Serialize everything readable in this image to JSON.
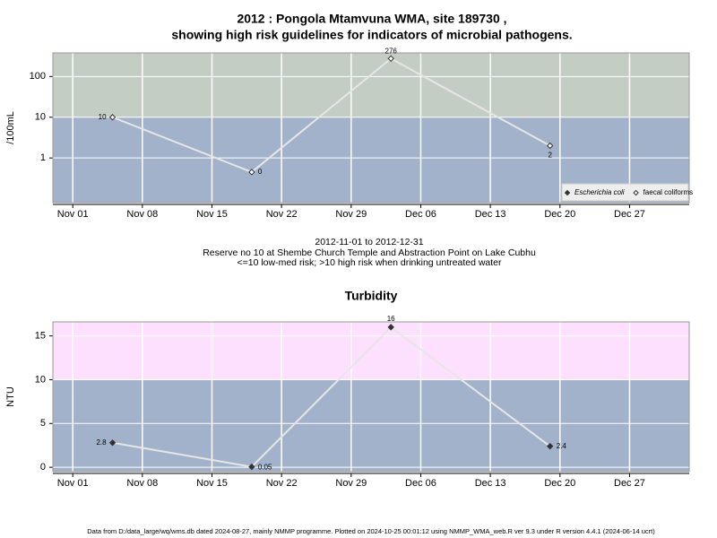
{
  "chart_data": [
    {
      "type": "line",
      "title": [
        "2012 : Pongola Mtamvuna WMA, site 189730 ,",
        "showing high risk guidelines for indicators of microbial pathogens."
      ],
      "ylabel": "/100mL",
      "caption": [
        "2012-11-01 to 2012-12-31",
        "Reserve no 10 at Shembe Church Temple and Abstraction Point on Lake Cubhu",
        "<=10 low-med risk; >10 high risk when drinking untreated water"
      ],
      "x": [
        "2012-11-05",
        "2012-11-19",
        "2012-12-03",
        "2012-12-19"
      ],
      "series": [
        {
          "name": "Escherichia coli",
          "marker": "filled",
          "values": [
            null,
            null,
            null,
            null
          ]
        },
        {
          "name": "faecal coliforms",
          "marker": "open",
          "values": [
            10,
            0.45,
            276,
            2
          ],
          "value_labels": [
            "10",
            "0",
            "276",
            "2"
          ]
        }
      ],
      "log_y": true,
      "ylim": [
        0.08,
        380
      ],
      "yticks": [
        1,
        10,
        100
      ],
      "xlim": [
        "2012-10-30",
        "2013-01-02"
      ],
      "xticks": [
        {
          "value": "2012-11-01",
          "label": "Nov 01"
        },
        {
          "value": "2012-11-08",
          "label": "Nov 08"
        },
        {
          "value": "2012-11-15",
          "label": "Nov 15"
        },
        {
          "value": "2012-11-22",
          "label": "Nov 22"
        },
        {
          "value": "2012-11-29",
          "label": "Nov 29"
        },
        {
          "value": "2012-12-06",
          "label": "Dec 06"
        },
        {
          "value": "2012-12-13",
          "label": "Dec 13"
        },
        {
          "value": "2012-12-20",
          "label": "Dec 20"
        },
        {
          "value": "2012-12-27",
          "label": "Dec 27"
        }
      ],
      "threshold": 10,
      "band_colors": [
        "#a2b2cb",
        "#c3cdc3"
      ],
      "grid": true,
      "legend": "bottomright"
    },
    {
      "type": "line",
      "title": "Turbidity",
      "ylabel": "NTU",
      "x": [
        "2012-11-05",
        "2012-11-19",
        "2012-12-03",
        "2012-12-19"
      ],
      "series": [
        {
          "marker": "filled",
          "values": [
            2.8,
            0.05,
            16,
            2.4
          ]
        }
      ],
      "log_y": false,
      "ylim": [
        -0.5,
        16.6
      ],
      "yticks": [
        0,
        5,
        10,
        15
      ],
      "xlim": [
        "2012-10-30",
        "2013-01-02"
      ],
      "xticks": [
        {
          "value": "2012-11-01",
          "label": "Nov 01"
        },
        {
          "value": "2012-11-08",
          "label": "Nov 08"
        },
        {
          "value": "2012-11-15",
          "label": "Nov 15"
        },
        {
          "value": "2012-11-22",
          "label": "Nov 22"
        },
        {
          "value": "2012-11-29",
          "label": "Nov 29"
        },
        {
          "value": "2012-12-06",
          "label": "Dec 06"
        },
        {
          "value": "2012-12-13",
          "label": "Dec 13"
        },
        {
          "value": "2012-12-20",
          "label": "Dec 20"
        },
        {
          "value": "2012-12-27",
          "label": "Dec 27"
        }
      ],
      "threshold": 10,
      "band_colors": [
        "#a2b2cb",
        "#fde0fd"
      ],
      "grid": true
    }
  ],
  "footer": "Data from D:/data_large/wq/wms.db dated 2024-08-27, mainly NMMP programme. Plotted on 2024-10-25 00:01:12 using NMMP_WMA_web.R ver 9.3 under R version 4.4.1 (2024-06-14 ucrt)"
}
